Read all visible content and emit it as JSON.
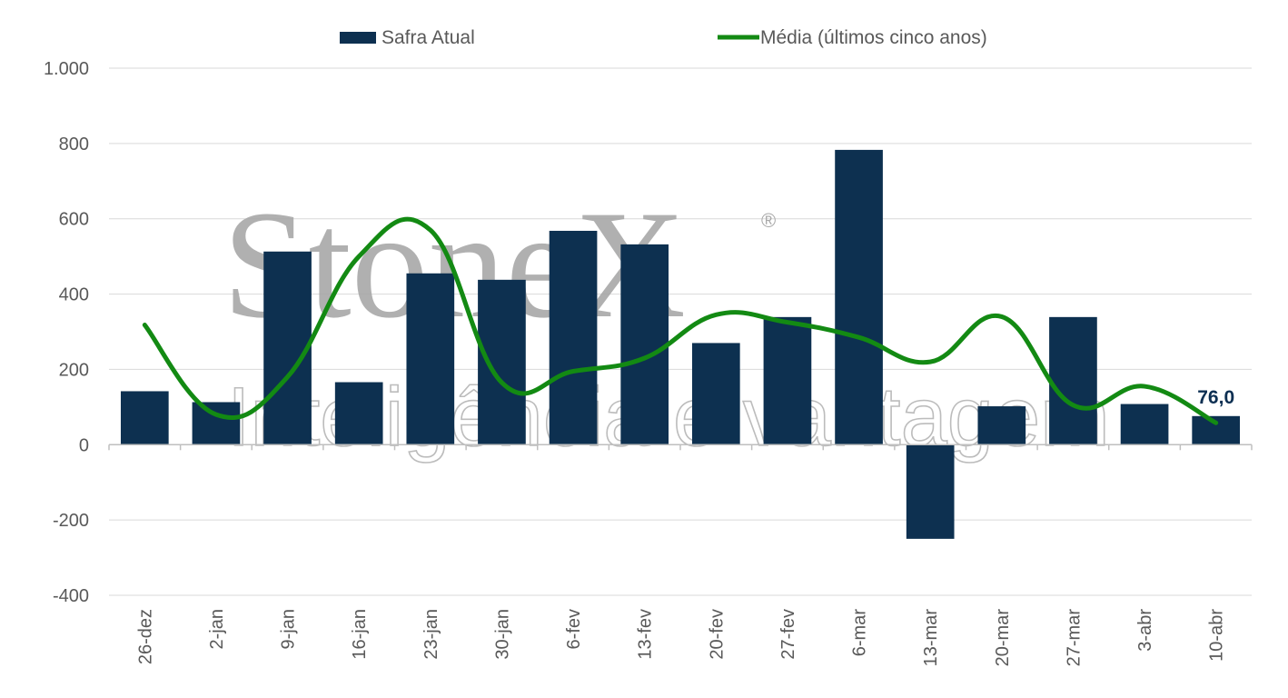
{
  "colors": {
    "bar": "#0d3050",
    "line": "#138a13",
    "grid": "#d9d9d9",
    "text": "#595959",
    "watermark": "#a8a8a8"
  },
  "watermark": {
    "brand": "StoneX",
    "registered": "®",
    "tagline": "Inteligência e vantagem"
  },
  "chart_data": {
    "type": "bar",
    "categories": [
      "26-dez",
      "2-jan",
      "9-jan",
      "16-jan",
      "23-jan",
      "30-jan",
      "6-fev",
      "13-fev",
      "20-fev",
      "27-fev",
      "6-mar",
      "13-mar",
      "20-mar",
      "27-mar",
      "3-abr",
      "10-abr"
    ],
    "series": [
      {
        "name": "Safra Atual",
        "type": "bar",
        "values": [
          142,
          113,
          513,
          166,
          455,
          438,
          568,
          532,
          270,
          339,
          783,
          -250,
          102,
          339,
          108,
          76
        ]
      },
      {
        "name": "Média (últimos cinco anos)",
        "type": "line",
        "smooth": true,
        "values": [
          318,
          80,
          180,
          500,
          570,
          165,
          195,
          230,
          345,
          325,
          285,
          220,
          340,
          105,
          155,
          58
        ]
      }
    ],
    "ylim": [
      -400,
      1000
    ],
    "yticks": [
      -400,
      -200,
      0,
      200,
      400,
      600,
      800,
      1000
    ],
    "ytick_labels": [
      "-400",
      "-200",
      "0",
      "200",
      "400",
      "600",
      "800",
      "1.000"
    ],
    "data_labels": [
      {
        "index": 15,
        "text": "76,0"
      }
    ],
    "grid": true,
    "legend_position": "top-center",
    "xlabel": "",
    "ylabel": "",
    "title": ""
  }
}
